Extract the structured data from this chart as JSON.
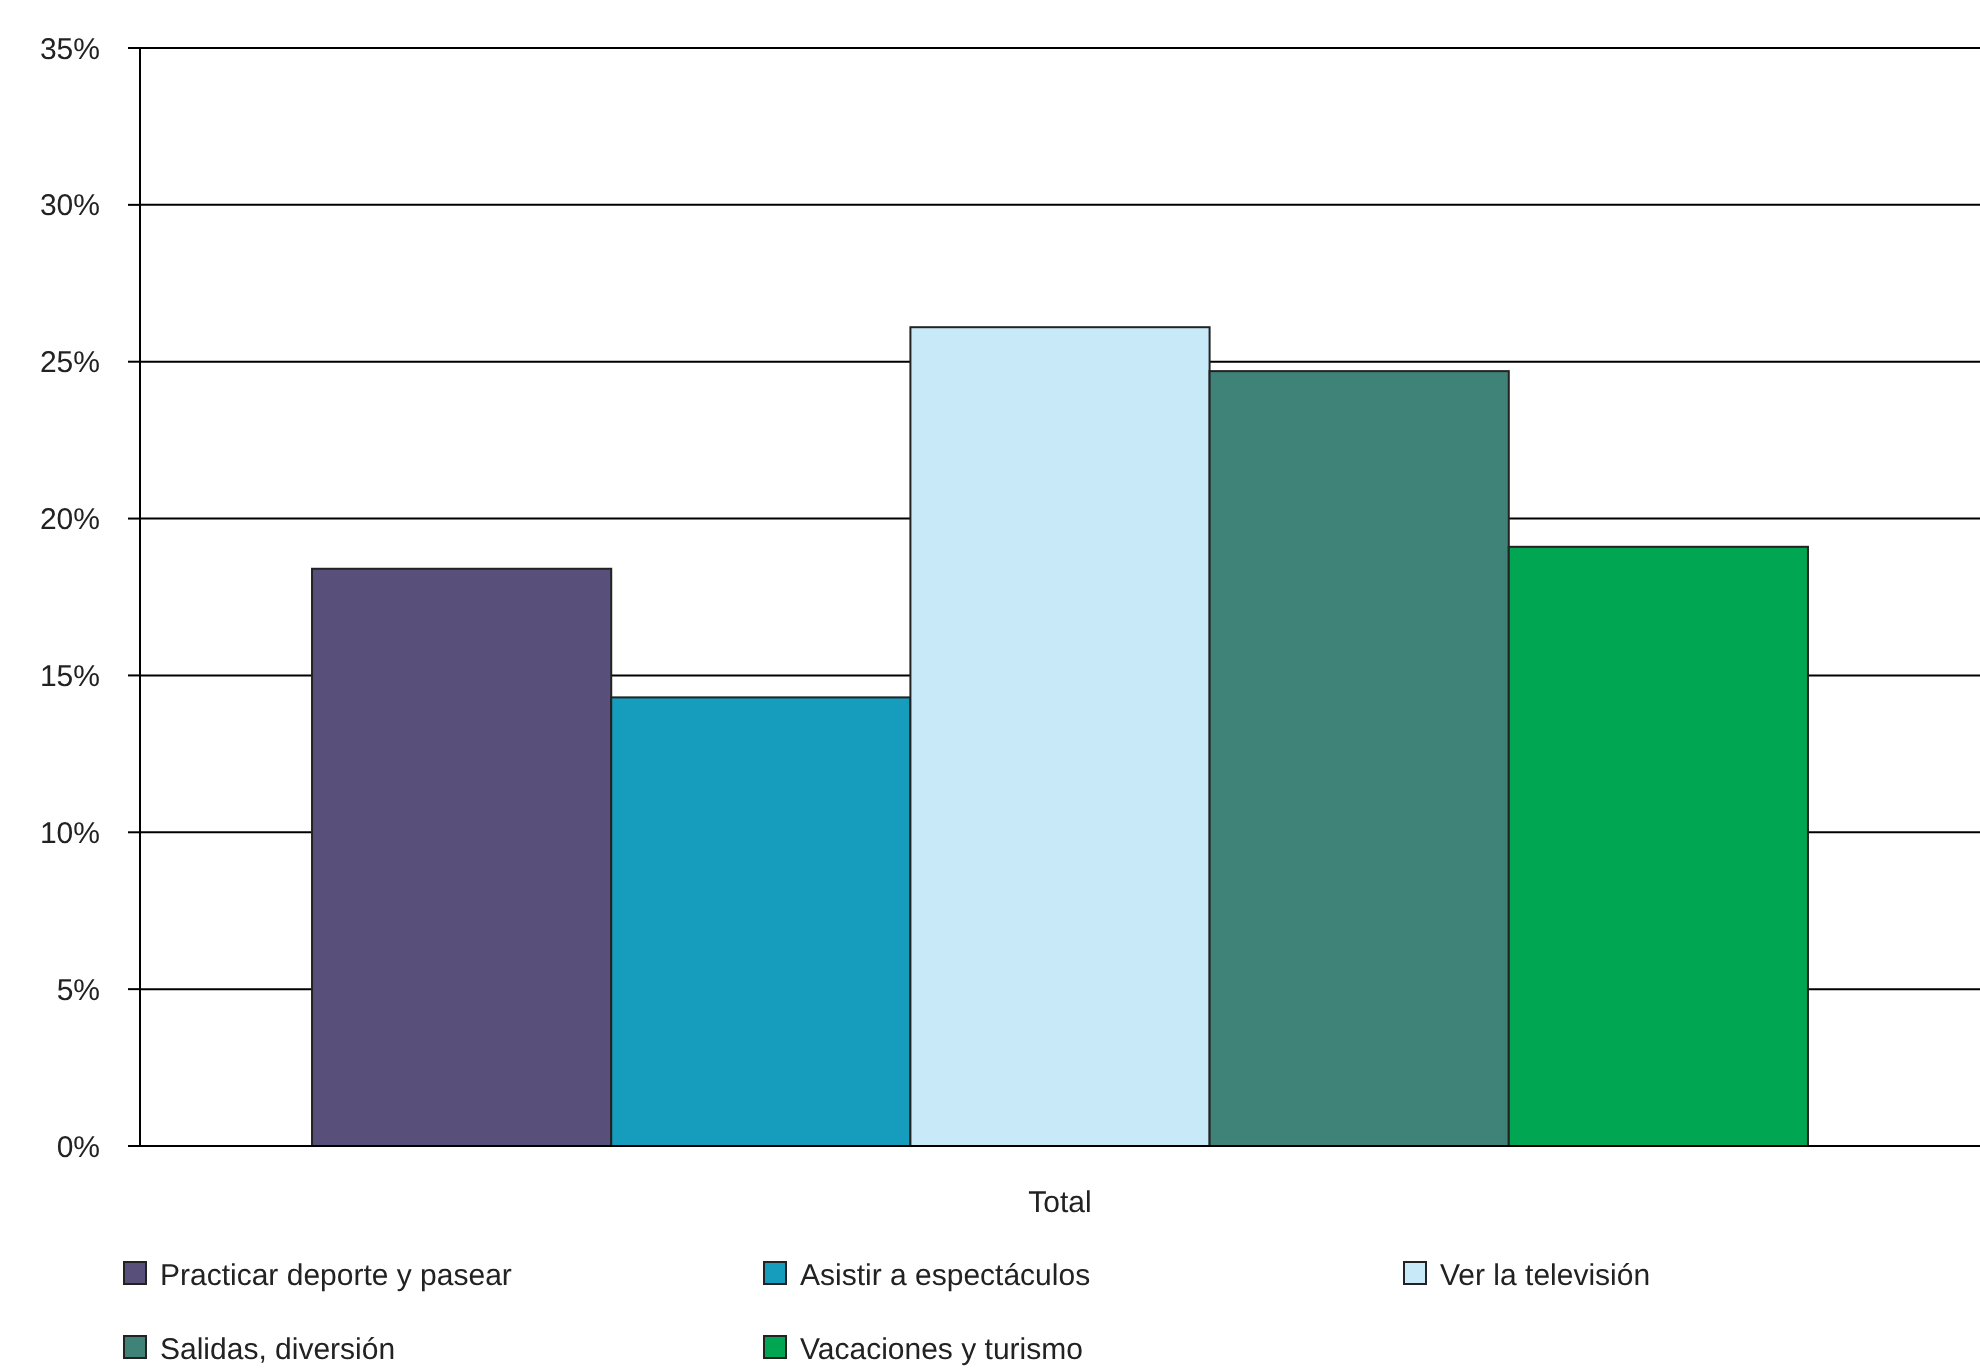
{
  "chart_data": {
    "type": "bar",
    "categories": [
      "Total"
    ],
    "series": [
      {
        "name": "Practicar deporte y pasear",
        "color": "#58507a",
        "values": [
          18.4
        ]
      },
      {
        "name": "Asistir a espectáculos",
        "color": "#169dbe",
        "values": [
          14.3
        ]
      },
      {
        "name": "Ver la televisión",
        "color": "#c8e9f8",
        "values": [
          26.1
        ]
      },
      {
        "name": "Salidas, diversión",
        "color": "#3e8278",
        "values": [
          24.7
        ]
      },
      {
        "name": "Vacaciones y turismo",
        "color": "#00a651",
        "values": [
          19.1
        ]
      }
    ],
    "ylim": [
      0,
      35
    ],
    "yticks": [
      {
        "value": 0,
        "label": "0%"
      },
      {
        "value": 5,
        "label": "5%"
      },
      {
        "value": 10,
        "label": "10%"
      },
      {
        "value": 15,
        "label": "15%"
      },
      {
        "value": 20,
        "label": "20%"
      },
      {
        "value": 25,
        "label": "25%"
      },
      {
        "value": 30,
        "label": "30%"
      },
      {
        "value": 35,
        "label": "35%"
      }
    ],
    "grid": "y",
    "legend": "bottom"
  }
}
